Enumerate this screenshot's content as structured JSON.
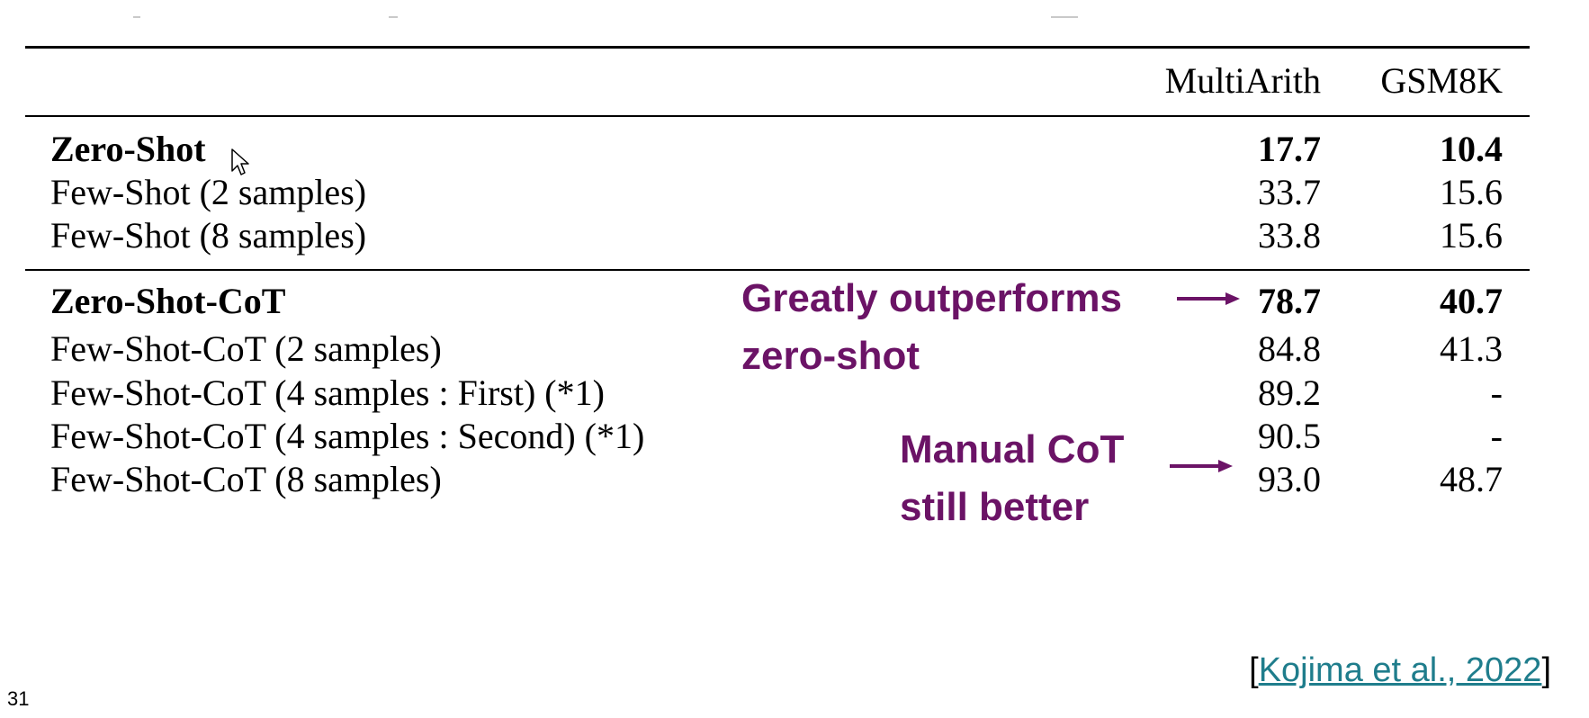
{
  "table": {
    "headers": [
      "MultiArith",
      "GSM8K"
    ],
    "rows": [
      {
        "method": "Zero-Shot",
        "multiarith": "17.7",
        "gsm8k": "10.4",
        "bold": true
      },
      {
        "method": "Few-Shot (2 samples)",
        "multiarith": "33.7",
        "gsm8k": "15.6"
      },
      {
        "method": "Few-Shot (8 samples)",
        "multiarith": "33.8",
        "gsm8k": "15.6"
      },
      {
        "method": "Zero-Shot-CoT",
        "multiarith": "78.7",
        "gsm8k": "40.7",
        "bold": true
      },
      {
        "method": "Few-Shot-CoT (2 samples)",
        "multiarith": "84.8",
        "gsm8k": "41.3"
      },
      {
        "method": "Few-Shot-CoT (4 samples : First) (*1)",
        "multiarith": "89.2",
        "gsm8k": "-"
      },
      {
        "method": "Few-Shot-CoT (4 samples : Second) (*1)",
        "multiarith": "90.5",
        "gsm8k": "-"
      },
      {
        "method": "Few-Shot-CoT (8 samples)",
        "multiarith": "93.0",
        "gsm8k": "48.7"
      }
    ]
  },
  "annotations": {
    "first": {
      "line1": "Greatly outperforms",
      "line2": "zero-shot"
    },
    "second": {
      "line1": "Manual CoT",
      "line2": "still better"
    },
    "color": "#6b1366"
  },
  "citation": {
    "open": "[",
    "link_text": "Kojima et al., 2022",
    "close": "]",
    "link_color": "#1f7d8c"
  },
  "page_number": "31"
}
